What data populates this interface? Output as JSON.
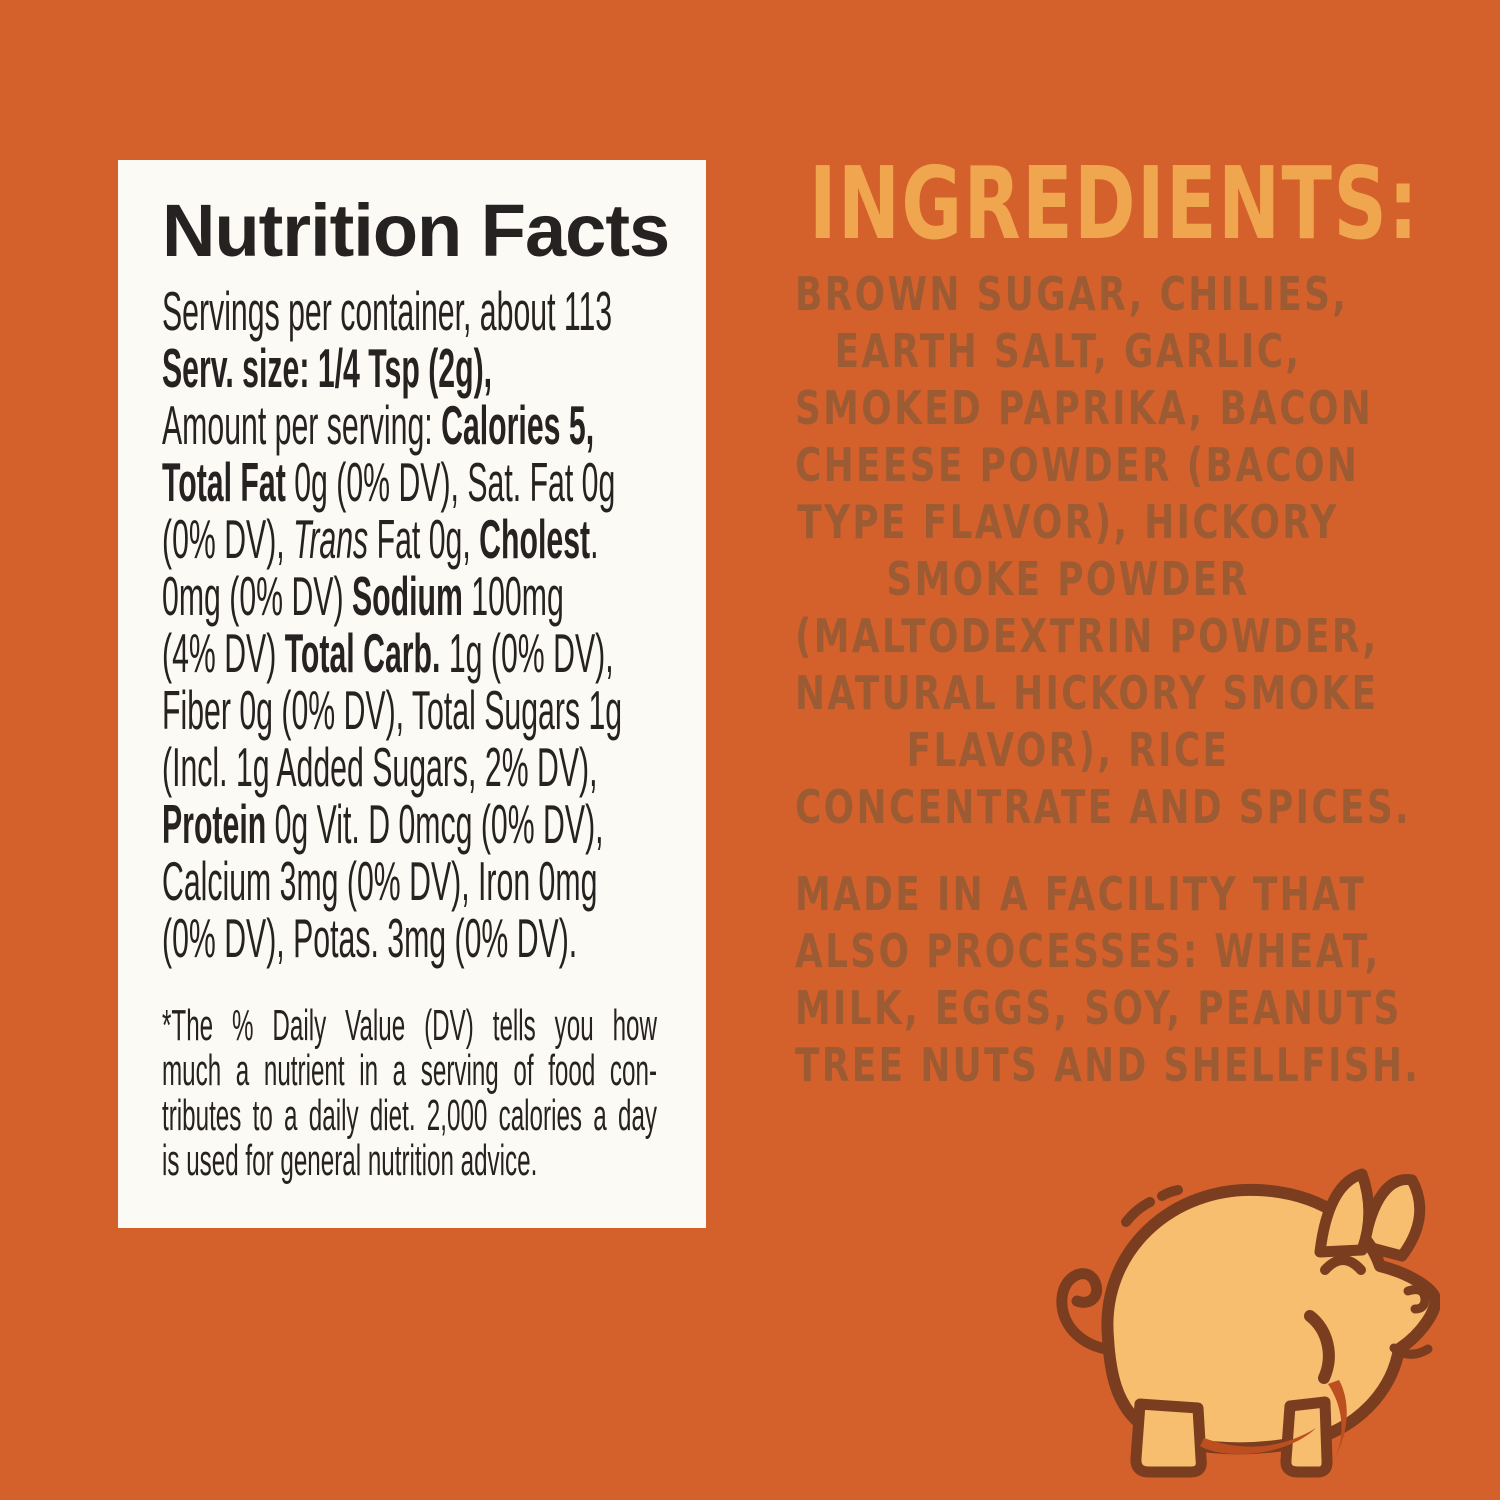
{
  "colors": {
    "background": "#D4612C",
    "panel_bg": "#FBFAF5",
    "text_dark": "#272222",
    "heading_gold": "#F0A64F",
    "ingredients_brown": "#9D5B33",
    "pig_body": "#F6BE6E",
    "pig_outline": "#7B3D1F",
    "pig_shadow": "#BC4E1F"
  },
  "nutrition_panel": {
    "title": "Nutrition Facts",
    "lines": [
      {
        "segments": [
          {
            "text": "Servings per container, about 113",
            "style": "regular"
          }
        ]
      },
      {
        "segments": [
          {
            "text": "Serv. size: 1/4 Tsp (2g),",
            "style": "bold"
          }
        ]
      },
      {
        "segments": [
          {
            "text": "Amount per serving: ",
            "style": "regular"
          },
          {
            "text": "Calories 5,",
            "style": "bold"
          }
        ]
      },
      {
        "segments": [
          {
            "text": "Total Fat ",
            "style": "bold"
          },
          {
            "text": "0g (0% DV), Sat. Fat 0g",
            "style": "regular"
          }
        ]
      },
      {
        "segments": [
          {
            "text": "(0% DV), ",
            "style": "regular"
          },
          {
            "text": "Trans ",
            "style": "italic"
          },
          {
            "text": "Fat 0g, ",
            "style": "regular"
          },
          {
            "text": "Cholest",
            "style": "bold"
          },
          {
            "text": ".",
            "style": "regular"
          }
        ]
      },
      {
        "segments": [
          {
            "text": "0mg (0% DV) ",
            "style": "regular"
          },
          {
            "text": "Sodium",
            "style": "bold"
          },
          {
            "text": " 100mg",
            "style": "regular"
          }
        ]
      },
      {
        "segments": [
          {
            "text": "(4% DV) ",
            "style": "regular"
          },
          {
            "text": "Total Carb.",
            "style": "bold"
          },
          {
            "text": " 1g (0% DV),",
            "style": "regular"
          }
        ]
      },
      {
        "segments": [
          {
            "text": "Fiber 0g (0% DV), Total Sugars 1g",
            "style": "regular"
          }
        ]
      },
      {
        "segments": [
          {
            "text": "(Incl. 1g Added Sugars, 2% DV),",
            "style": "regular"
          }
        ]
      },
      {
        "segments": [
          {
            "text": "Protein",
            "style": "bold"
          },
          {
            "text": " 0g Vit. D 0mcg (0% DV),",
            "style": "regular"
          }
        ]
      },
      {
        "segments": [
          {
            "text": "Calcium 3mg (0% DV), Iron 0mg",
            "style": "regular"
          }
        ]
      },
      {
        "segments": [
          {
            "text": "(0% DV), Potas. 3mg (0% DV).",
            "style": "regular"
          }
        ]
      }
    ],
    "footnote_lines": [
      "*The % Daily Value (DV) tells you how",
      "much a nutrient in a serving of food con-",
      "tributes to a daily diet. 2,000 calories a day",
      "is used for general nutrition advice."
    ]
  },
  "ingredients_panel": {
    "heading": "INGREDIENTS:",
    "lines": [
      "BROWN SUGAR, CHILIES,",
      "EARTH SALT, GARLIC,",
      "SMOKED PAPRIKA, BACON",
      "CHEESE POWDER (BACON",
      "TYPE FLAVOR), HICKORY",
      "SMOKE POWDER",
      "(MALTODEXTRIN POWDER,",
      "NATURAL HICKORY SMOKE",
      "FLAVOR), RICE",
      "CONCENTRATE AND SPICES."
    ],
    "allergen_lines": [
      "MADE IN A FACILITY THAT",
      "ALSO PROCESSES: WHEAT,",
      "MILK, EGGS, SOY, PEANUTS",
      "TREE NUTS AND SHELLFISH."
    ]
  },
  "icons": {
    "pig": "pig-icon"
  }
}
